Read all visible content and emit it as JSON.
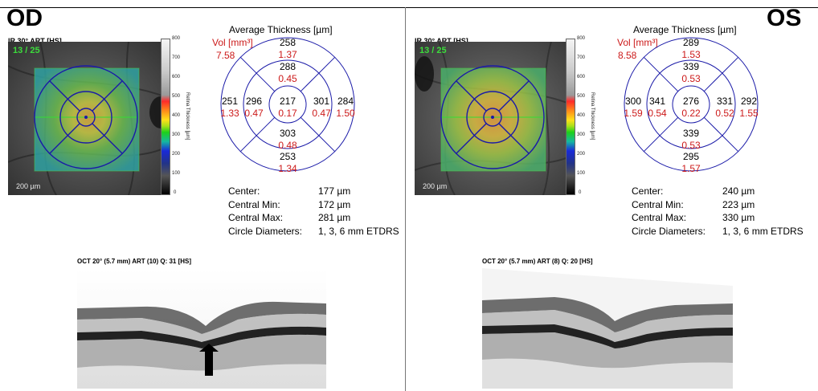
{
  "od": {
    "eye": "OD",
    "fundus_label": "IR 30° ART [HS]",
    "fundus_counter": "13 / 25",
    "fundus_scale": "200 µm",
    "avg_title": "Average Thickness [µm]",
    "vol_label": "Vol [mm³]",
    "total_volume": "7.58",
    "sectors": {
      "center": {
        "thickness": "217",
        "volume": "0.17"
      },
      "inner_superior": {
        "thickness": "288",
        "volume": "0.45"
      },
      "inner_temporal": {
        "thickness": "296",
        "volume": "0.47"
      },
      "inner_nasal": {
        "thickness": "301",
        "volume": "0.47"
      },
      "inner_inferior": {
        "thickness": "303",
        "volume": "0.48"
      },
      "outer_superior": {
        "thickness": "258",
        "volume": "1.37"
      },
      "outer_temporal": {
        "thickness": "251",
        "volume": "1.33"
      },
      "outer_nasal": {
        "thickness": "284",
        "volume": "1.50"
      },
      "outer_inferior": {
        "thickness": "253",
        "volume": "1.34"
      }
    },
    "stats": {
      "center_label": "Center:",
      "center_value": "177 µm",
      "min_label": "Central Min:",
      "min_value": "172 µm",
      "max_label": "Central Max:",
      "max_value": "281 µm",
      "diam_label": "Circle Diameters:",
      "diam_value": "1, 3, 6 mm ETDRS"
    },
    "oct_label": "OCT 20° (5.7 mm) ART (10) Q: 31 [HS]"
  },
  "os": {
    "eye": "OS",
    "fundus_label": "IR 30° ART [HS]",
    "fundus_counter": "13 / 25",
    "fundus_scale": "200 µm",
    "avg_title": "Average Thickness [µm]",
    "vol_label": "Vol [mm³]",
    "total_volume": "8.58",
    "sectors": {
      "center": {
        "thickness": "276",
        "volume": "0.22"
      },
      "inner_superior": {
        "thickness": "339",
        "volume": "0.53"
      },
      "inner_temporal": {
        "thickness": "341",
        "volume": "0.54"
      },
      "inner_nasal": {
        "thickness": "331",
        "volume": "0.52"
      },
      "inner_inferior": {
        "thickness": "339",
        "volume": "0.53"
      },
      "outer_superior": {
        "thickness": "289",
        "volume": "1.53"
      },
      "outer_temporal": {
        "thickness": "300",
        "volume": "1.59"
      },
      "outer_nasal": {
        "thickness": "292",
        "volume": "1.55"
      },
      "outer_inferior": {
        "thickness": "295",
        "volume": "1.57"
      }
    },
    "stats": {
      "center_label": "Center:",
      "center_value": "240 µm",
      "min_label": "Central Min:",
      "min_value": "223 µm",
      "max_label": "Central Max:",
      "max_value": "330 µm",
      "diam_label": "Circle Diameters:",
      "diam_value": "1, 3, 6 mm ETDRS"
    },
    "oct_label": "OCT 20° (5.7 mm) ART (8) Q: 20 [HS]"
  },
  "colorbar": {
    "ticks": [
      "800",
      "700",
      "600",
      "500",
      "400",
      "300",
      "200",
      "100",
      "0"
    ],
    "title": "Retina Thickness [µm]"
  },
  "colors": {
    "grid": "#1a1aa8",
    "volume": "#cc1a1a",
    "counter": "#3cdc3c"
  }
}
